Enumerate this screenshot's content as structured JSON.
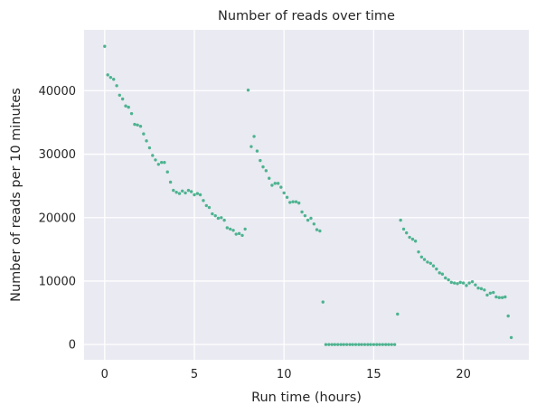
{
  "chart_data": {
    "type": "scatter",
    "title": "Number of reads over time",
    "xlabel": "Run time (hours)",
    "ylabel": "Number of reads per 10 minutes",
    "xlim": [
      -1.15,
      23.65
    ],
    "ylim": [
      -2400,
      49600
    ],
    "xticks": [
      0,
      5,
      10,
      15,
      20
    ],
    "yticks": [
      0,
      10000,
      20000,
      30000,
      40000
    ],
    "grid": true,
    "legend": "none",
    "colors": {
      "marker": "#4db38f",
      "plot_background": "#eaeaf2",
      "grid": "#ffffff",
      "text": "#262626"
    },
    "x": [
      0.0,
      0.17,
      0.33,
      0.5,
      0.67,
      0.83,
      1.0,
      1.17,
      1.33,
      1.5,
      1.67,
      1.83,
      2.0,
      2.17,
      2.33,
      2.5,
      2.67,
      2.83,
      3.0,
      3.17,
      3.33,
      3.5,
      3.67,
      3.83,
      4.0,
      4.17,
      4.33,
      4.5,
      4.67,
      4.83,
      5.0,
      5.17,
      5.33,
      5.5,
      5.67,
      5.83,
      6.0,
      6.17,
      6.33,
      6.5,
      6.67,
      6.83,
      7.0,
      7.17,
      7.33,
      7.5,
      7.67,
      7.83,
      8.0,
      8.17,
      8.33,
      8.5,
      8.67,
      8.83,
      9.0,
      9.17,
      9.33,
      9.5,
      9.67,
      9.83,
      10.0,
      10.17,
      10.33,
      10.5,
      10.67,
      10.83,
      11.0,
      11.17,
      11.33,
      11.5,
      11.67,
      11.83,
      12.0,
      12.17,
      12.33,
      12.5,
      12.67,
      12.83,
      13.0,
      13.17,
      13.33,
      13.5,
      13.67,
      13.83,
      14.0,
      14.17,
      14.33,
      14.5,
      14.67,
      14.83,
      15.0,
      15.17,
      15.33,
      15.5,
      15.67,
      15.83,
      16.0,
      16.17,
      16.33,
      16.5,
      16.67,
      16.83,
      17.0,
      17.17,
      17.33,
      17.5,
      17.67,
      17.83,
      18.0,
      18.17,
      18.33,
      18.5,
      18.67,
      18.83,
      19.0,
      19.17,
      19.33,
      19.5,
      19.67,
      19.83,
      20.0,
      20.17,
      20.33,
      20.5,
      20.67,
      20.83,
      21.0,
      21.17,
      21.33,
      21.5,
      21.67,
      21.83,
      22.0,
      22.17,
      22.33,
      22.5,
      22.67
    ],
    "y": [
      47000,
      42500,
      42100,
      41800,
      40800,
      39300,
      38700,
      37600,
      37400,
      36400,
      34700,
      34600,
      34400,
      33200,
      32100,
      31000,
      29800,
      29100,
      28400,
      28700,
      28700,
      27200,
      25600,
      24300,
      24000,
      23800,
      24200,
      23900,
      24300,
      24100,
      23600,
      23800,
      23600,
      22700,
      21900,
      21600,
      20600,
      20300,
      19900,
      20000,
      19600,
      18400,
      18200,
      18000,
      17400,
      17500,
      17200,
      18200,
      40100,
      31200,
      32800,
      30500,
      29000,
      28000,
      27400,
      26200,
      25100,
      25400,
      25400,
      24800,
      23900,
      23200,
      22400,
      22500,
      22500,
      22300,
      20900,
      20300,
      19600,
      19900,
      19000,
      18100,
      17900,
      6700,
      0,
      0,
      0,
      0,
      0,
      0,
      0,
      0,
      0,
      0,
      0,
      0,
      0,
      0,
      0,
      0,
      0,
      0,
      0,
      0,
      0,
      0,
      0,
      0,
      4800,
      19600,
      18200,
      17600,
      16900,
      16600,
      16300,
      14600,
      13800,
      13400,
      13000,
      12800,
      12400,
      11900,
      11300,
      11100,
      10500,
      10200,
      9800,
      9700,
      9600,
      9800,
      9700,
      9300,
      9700,
      9900,
      9400,
      8900,
      8800,
      8600,
      7800,
      8100,
      8200,
      7500,
      7400,
      7400,
      7500,
      4500,
      1100
    ]
  }
}
